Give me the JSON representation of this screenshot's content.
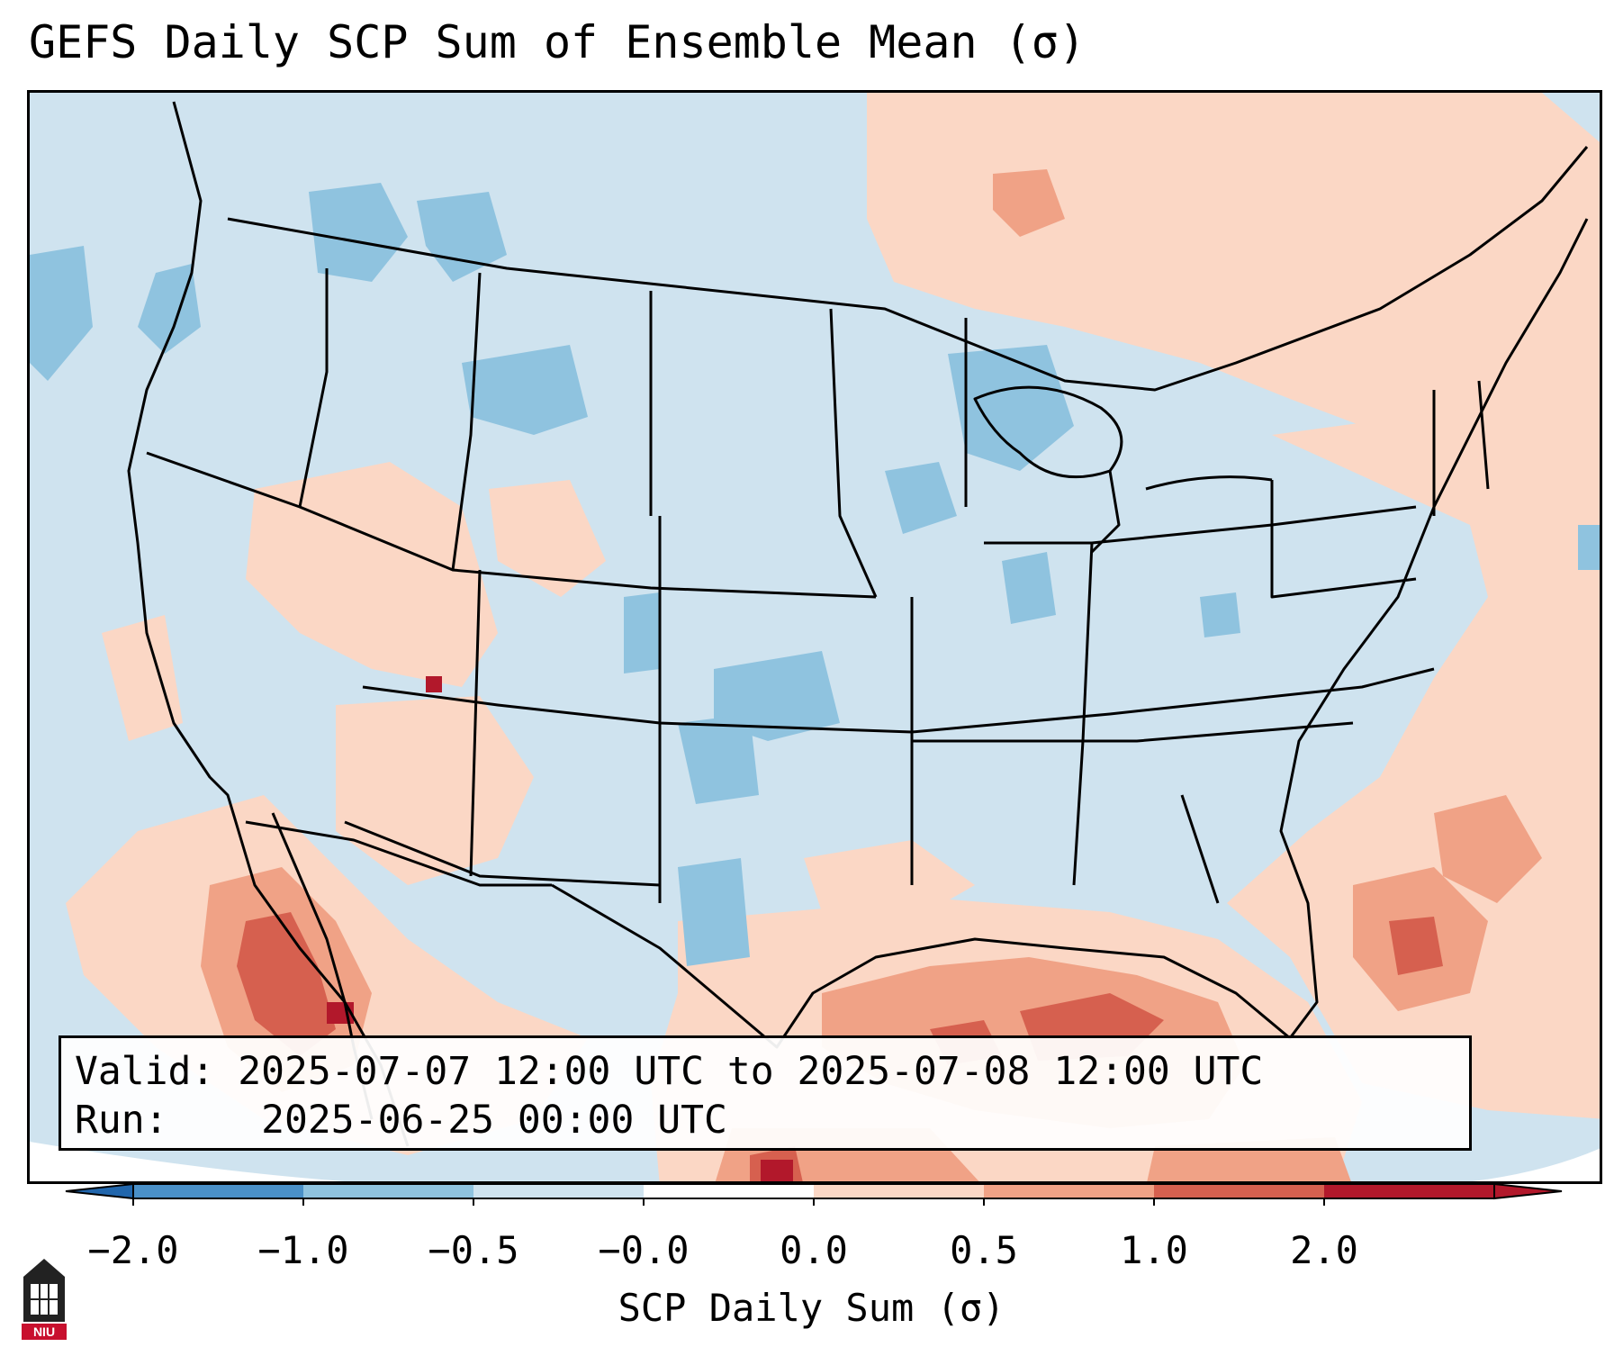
{
  "title": "GEFS Daily SCP Sum of Ensemble Mean (σ)",
  "info": {
    "valid_label": "Valid:",
    "valid_value": "2025-07-07 12:00 UTC to 2025-07-08 12:00 UTC",
    "run_label": "Run:",
    "run_value": "2025-06-25 00:00 UTC"
  },
  "colorbar": {
    "label": "SCP Daily Sum (σ)",
    "ticks": [
      "−2.0",
      "−1.0",
      "−0.5",
      "−0.0",
      "0.0",
      "0.5",
      "1.0",
      "2.0"
    ],
    "colors": [
      "#4a90c8",
      "#8fc3df",
      "#cfe3ef",
      "#ffffff",
      "#fbd7c5",
      "#f0a286",
      "#d6604f",
      "#b2182b"
    ],
    "extend_colors": [
      "#2166ac",
      "#b2182b"
    ]
  },
  "logo": {
    "text": "NIU"
  }
}
